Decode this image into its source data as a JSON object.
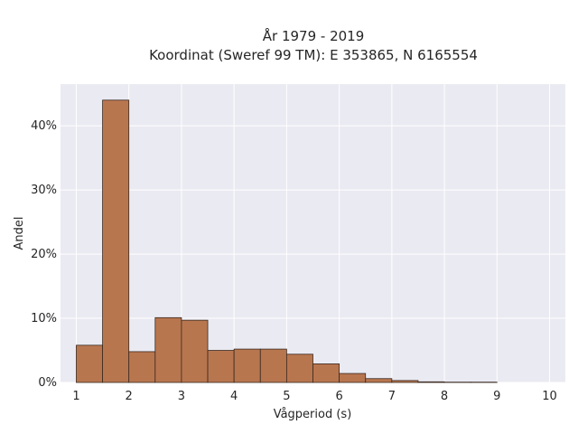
{
  "chart_data": {
    "type": "bar",
    "title": "År 1979 - 2019",
    "subtitle": "Koordinat (Sweref 99 TM): E 353865, N 6165554",
    "xlabel": "Vågperiod (s)",
    "ylabel": "Andel",
    "bin_edges": [
      1,
      1.5,
      2,
      2.5,
      3,
      3.5,
      4,
      4.5,
      5,
      5.5,
      6,
      6.5,
      7,
      7.5,
      8,
      8.5,
      9
    ],
    "values": [
      5.8,
      44.0,
      4.8,
      10.1,
      9.7,
      5.0,
      5.2,
      5.2,
      4.4,
      2.9,
      1.4,
      0.6,
      0.3,
      0.1,
      0.05,
      0.05
    ],
    "xlim": [
      0.7,
      10.3
    ],
    "ylim": [
      0,
      46.5
    ],
    "x_ticks": [
      "1",
      "2",
      "3",
      "4",
      "5",
      "6",
      "7",
      "8",
      "9",
      "10"
    ],
    "y_ticks": [
      "0%",
      "10%",
      "20%",
      "30%",
      "40%"
    ],
    "grid": true,
    "bar_color": "#b8764f",
    "bar_edge_color": "#3a2a20",
    "background_color": "#eaeaf2"
  }
}
